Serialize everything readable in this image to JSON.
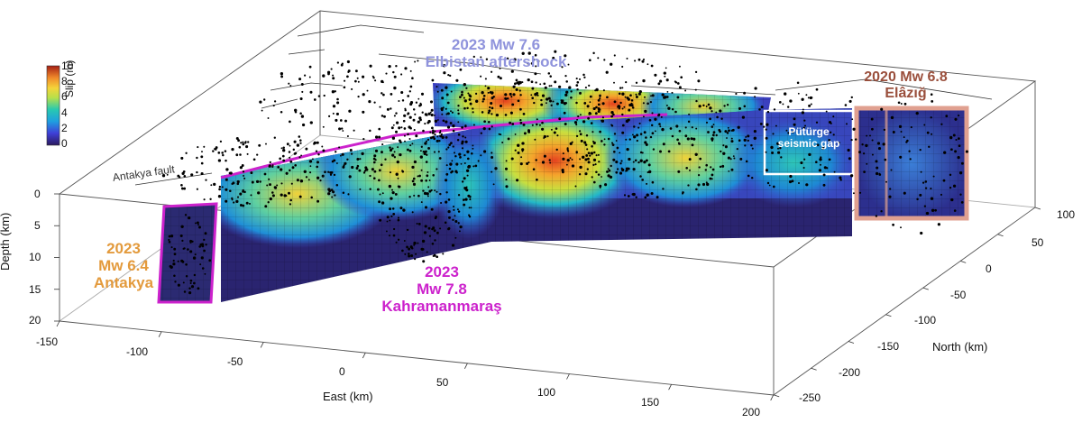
{
  "colors": {
    "mw64": "#e39a3c",
    "mw76": "#8f93dc",
    "mw78": "#cc22cc",
    "mw68": "#9a4f3c",
    "mw68_box": "#e0a090",
    "gap": "#ffffff"
  },
  "colorbar": {
    "label": "Slip (m)",
    "ticks": [
      "10",
      "8",
      "6",
      "4",
      "2",
      "0"
    ]
  },
  "axes": {
    "depth_title": "Depth (km)",
    "east_title": "East (km)",
    "north_title": "North (km)",
    "depth_ticks": [
      "0",
      "5",
      "10",
      "15",
      "20"
    ],
    "east_ticks": [
      "-150",
      "-100",
      "-50",
      "0",
      "50",
      "100",
      "150",
      "200"
    ],
    "north_ticks": [
      "100",
      "50",
      "0",
      "-50",
      "-100",
      "-150",
      "-200",
      "-250"
    ]
  },
  "labels": {
    "antakya_fault": "Antakya fault",
    "mw76_line1": "2023 Mw 7.6",
    "mw76_line2": "Elbistan aftershock",
    "mw68_line1": "2020 Mw 6.8",
    "mw68_line2": "Elâzığ",
    "gap_line1": "Pütürge",
    "gap_line2": "seismic gap",
    "mw64_line1": "2023",
    "mw64_line2": "Mw 6.4",
    "mw64_line3": "Antakya",
    "mw78_line1": "2023",
    "mw78_line2": "Mw 7.8",
    "mw78_line3": "Kahramanmaraş"
  }
}
